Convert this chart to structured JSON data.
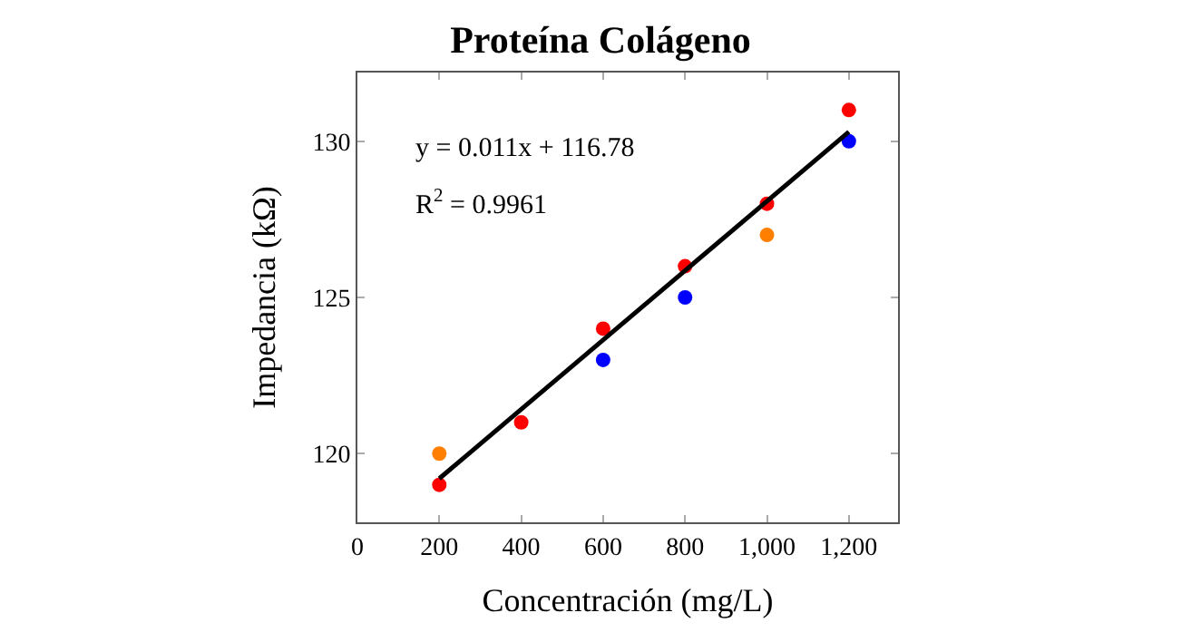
{
  "chart_data": {
    "type": "scatter",
    "title": "Proteína Colágeno",
    "xlabel": "Concentración (mg/L)",
    "ylabel": "Impedancia (kΩ)",
    "xlim": [
      0,
      1320
    ],
    "ylim": [
      117.8,
      132.2
    ],
    "xticks": [
      0,
      200,
      400,
      600,
      800,
      {
        "value": 1000,
        "label": "1,000"
      },
      {
        "value": 1200,
        "label": "1,200"
      }
    ],
    "yticks": [
      120,
      125,
      130
    ],
    "marker": "circle",
    "annotations": [
      "y = 0.011x + 116.78",
      "R$^{2}$ = 0.9961"
    ],
    "series": [
      {
        "color": "#ff0000",
        "x": [
          200,
          400,
          600,
          800,
          1000,
          1200
        ],
        "values": [
          119,
          121,
          124,
          126,
          128,
          131
        ]
      },
      {
        "color": "#0000ff",
        "x": [
          600,
          800,
          1200
        ],
        "values": [
          123,
          125,
          130
        ]
      },
      {
        "color": "#ff7f00",
        "x": [
          200,
          1000
        ],
        "values": [
          120,
          127
        ]
      },
      {
        "type": "line",
        "color": "#000000",
        "x": [
          200,
          1200
        ],
        "values": [
          119.2,
          130.3
        ],
        "line_style": "solid",
        "marker": "none"
      }
    ]
  }
}
